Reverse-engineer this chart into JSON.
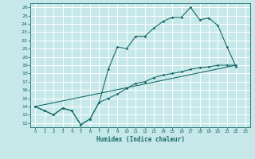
{
  "xlabel": "Humidex (Indice chaleur)",
  "xlim": [
    -0.5,
    23.5
  ],
  "ylim": [
    11.5,
    26.5
  ],
  "xticks": [
    0,
    1,
    2,
    3,
    4,
    5,
    6,
    7,
    8,
    9,
    10,
    11,
    12,
    13,
    14,
    15,
    16,
    17,
    18,
    19,
    20,
    21,
    22,
    23
  ],
  "yticks": [
    12,
    13,
    14,
    15,
    16,
    17,
    18,
    19,
    20,
    21,
    22,
    23,
    24,
    25,
    26
  ],
  "bg_color": "#c6e8e8",
  "line_color": "#1a6b6b",
  "line1_x": [
    0,
    1,
    2,
    3,
    4,
    5,
    6,
    7,
    8,
    9,
    10,
    11,
    12,
    13,
    14,
    15,
    16,
    17,
    18,
    19,
    20,
    21,
    22
  ],
  "line1_y": [
    14.0,
    13.5,
    13.0,
    13.8,
    13.5,
    11.8,
    12.5,
    14.5,
    18.5,
    21.2,
    21.0,
    22.5,
    22.5,
    23.5,
    24.3,
    24.8,
    24.8,
    26.0,
    24.5,
    24.7,
    23.8,
    21.2,
    18.8
  ],
  "line2_x": [
    0,
    1,
    2,
    3,
    4,
    5,
    6,
    7,
    8,
    9,
    10,
    11,
    12,
    13,
    14,
    15,
    16,
    17,
    18,
    19,
    20,
    21,
    22
  ],
  "line2_y": [
    14.0,
    13.5,
    13.0,
    13.8,
    13.5,
    11.8,
    12.5,
    14.5,
    15.0,
    15.5,
    16.2,
    16.8,
    17.0,
    17.5,
    17.8,
    18.0,
    18.2,
    18.5,
    18.7,
    18.8,
    19.0,
    19.0,
    19.0
  ],
  "line3_x": [
    0,
    22
  ],
  "line3_y": [
    14.0,
    19.0
  ]
}
